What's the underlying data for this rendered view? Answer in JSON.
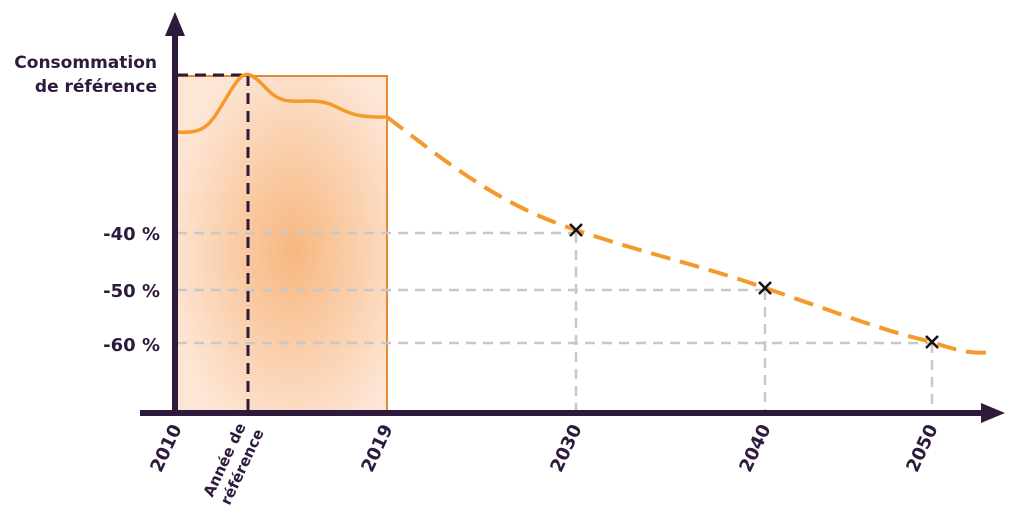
{
  "y_axis": {
    "label_lines": [
      "Consommation",
      "de référence"
    ]
  },
  "y_labels": [
    "-40 %",
    "-50 %",
    "-60 %"
  ],
  "x_labels": {
    "start": "2010",
    "reference_lines": [
      "Année de",
      "référence"
    ],
    "end_reference_period": "2019",
    "targets": [
      "2030",
      "2040",
      "2050"
    ]
  }
}
